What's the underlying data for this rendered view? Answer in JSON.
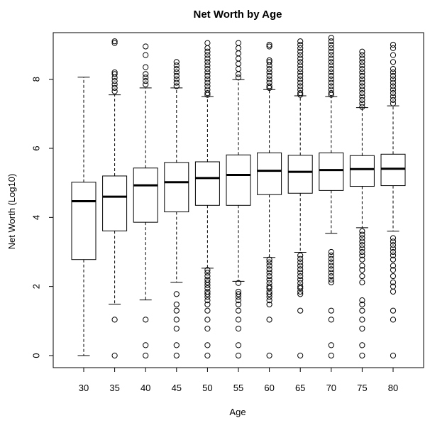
{
  "chart_data": {
    "type": "boxplot",
    "title": "Net Worth by Age",
    "xlabel": "Age",
    "ylabel": "Net Worth (Log10)",
    "ylim": [
      -0.35,
      9.35
    ],
    "yticks": [
      "0",
      "2",
      "4",
      "6",
      "8"
    ],
    "categories": [
      "30",
      "35",
      "40",
      "45",
      "50",
      "55",
      "60",
      "65",
      "70",
      "75",
      "80"
    ],
    "boxes": [
      {
        "category": "30",
        "whisker_low": 0.0,
        "q1": 2.78,
        "median": 4.47,
        "q3": 5.02,
        "whisker_high": 8.06,
        "outliers_low": [],
        "outliers_high": []
      },
      {
        "category": "35",
        "whisker_low": 1.49,
        "q1": 3.61,
        "median": 4.6,
        "q3": 5.2,
        "whisker_high": 7.55,
        "outliers_low": [
          0.0,
          1.04
        ],
        "outliers_high": [
          7.65,
          7.75,
          7.85,
          7.95,
          8.05,
          8.15,
          8.2,
          9.05,
          9.1
        ]
      },
      {
        "category": "40",
        "whisker_low": 1.61,
        "q1": 3.86,
        "median": 4.93,
        "q3": 5.43,
        "whisker_high": 7.75,
        "outliers_low": [
          0.0,
          0.3,
          1.04
        ],
        "outliers_high": [
          7.85,
          7.95,
          8.05,
          8.15,
          8.35,
          8.7,
          8.95
        ]
      },
      {
        "category": "45",
        "whisker_low": 2.12,
        "q1": 4.16,
        "median": 5.02,
        "q3": 5.59,
        "whisker_high": 7.75,
        "outliers_low": [
          0.0,
          0.3,
          0.78,
          1.04,
          1.3,
          1.48,
          1.78
        ],
        "outliers_high": [
          7.8,
          7.9,
          8.0,
          8.1,
          8.2,
          8.3,
          8.4,
          8.5
        ]
      },
      {
        "category": "50",
        "whisker_low": 2.53,
        "q1": 4.35,
        "median": 5.14,
        "q3": 5.61,
        "whisker_high": 7.5,
        "outliers_low": [
          0.0,
          0.3,
          0.78,
          1.04,
          1.3,
          1.48,
          1.6,
          1.7,
          1.78,
          1.85,
          1.95,
          2.04,
          2.12,
          2.2,
          2.3,
          2.4,
          2.48
        ],
        "outliers_high": [
          7.55,
          7.6,
          7.7,
          7.8,
          7.9,
          8.0,
          8.1,
          8.2,
          8.3,
          8.4,
          8.5,
          8.6,
          8.7,
          8.8,
          8.9,
          9.05
        ]
      },
      {
        "category": "55",
        "whisker_low": 2.15,
        "q1": 4.35,
        "median": 5.23,
        "q3": 5.81,
        "whisker_high": 7.99,
        "outliers_low": [
          0.0,
          0.3,
          0.78,
          1.04,
          1.3,
          1.48,
          1.6,
          1.7,
          1.78,
          1.85,
          2.1
        ],
        "outliers_high": [
          8.05,
          8.15,
          8.3,
          8.45,
          8.6,
          8.75,
          8.9,
          9.05
        ]
      },
      {
        "category": "60",
        "whisker_low": 2.84,
        "q1": 4.66,
        "median": 5.35,
        "q3": 5.87,
        "whisker_high": 7.7,
        "outliers_low": [
          0.0,
          1.04,
          1.48,
          1.6,
          1.7,
          1.78,
          1.85,
          1.95,
          2.0,
          2.1,
          2.2,
          2.3,
          2.4,
          2.5,
          2.6,
          2.7,
          2.78
        ],
        "outliers_high": [
          7.75,
          7.8,
          7.9,
          8.0,
          8.1,
          8.2,
          8.3,
          8.4,
          8.5,
          8.55,
          8.95,
          9.0
        ]
      },
      {
        "category": "65",
        "whisker_low": 2.99,
        "q1": 4.7,
        "median": 5.32,
        "q3": 5.8,
        "whisker_high": 7.52,
        "outliers_low": [
          0.0,
          1.3,
          1.78,
          1.85,
          1.95,
          2.0,
          2.1,
          2.2,
          2.3,
          2.4,
          2.5,
          2.6,
          2.7,
          2.8,
          2.9
        ],
        "outliers_high": [
          7.55,
          7.6,
          7.7,
          7.8,
          7.9,
          8.0,
          8.1,
          8.2,
          8.3,
          8.4,
          8.5,
          8.6,
          8.7,
          8.8,
          8.9,
          9.0,
          9.1
        ]
      },
      {
        "category": "70",
        "whisker_low": 3.54,
        "q1": 4.78,
        "median": 5.37,
        "q3": 5.87,
        "whisker_high": 7.5,
        "outliers_low": [
          0.0,
          0.3,
          1.04,
          1.3,
          2.12,
          2.2,
          2.3,
          2.4,
          2.5,
          2.6,
          2.7,
          2.8,
          2.9,
          3.0
        ],
        "outliers_high": [
          7.55,
          7.6,
          7.7,
          7.8,
          7.9,
          8.0,
          8.1,
          8.2,
          8.3,
          8.4,
          8.5,
          8.6,
          8.7,
          8.8,
          8.9,
          9.0,
          9.1,
          9.2
        ]
      },
      {
        "category": "75",
        "whisker_low": 3.7,
        "q1": 4.9,
        "median": 5.4,
        "q3": 5.79,
        "whisker_high": 7.18,
        "outliers_low": [
          0.0,
          0.3,
          0.78,
          1.04,
          1.3,
          1.48,
          1.6,
          2.12,
          2.3,
          2.48,
          2.6,
          2.78,
          2.9,
          3.0,
          3.1,
          3.2,
          3.3,
          3.4,
          3.5,
          3.6
        ],
        "outliers_high": [
          7.2,
          7.3,
          7.4,
          7.5,
          7.6,
          7.7,
          7.8,
          7.9,
          8.0,
          8.1,
          8.2,
          8.3,
          8.4,
          8.5,
          8.6,
          8.7,
          8.8
        ]
      },
      {
        "category": "80",
        "whisker_low": 3.6,
        "q1": 4.92,
        "median": 5.41,
        "q3": 5.83,
        "whisker_high": 7.23,
        "outliers_low": [
          0.0,
          1.04,
          1.3,
          1.85,
          2.0,
          2.12,
          2.3,
          2.48,
          2.6,
          2.78,
          2.9,
          3.0,
          3.1,
          3.2,
          3.3,
          3.4
        ],
        "outliers_high": [
          7.3,
          7.4,
          7.5,
          7.6,
          7.7,
          7.8,
          7.9,
          8.0,
          8.1,
          8.2,
          8.3,
          8.5,
          8.7,
          8.9,
          9.0
        ]
      }
    ]
  }
}
